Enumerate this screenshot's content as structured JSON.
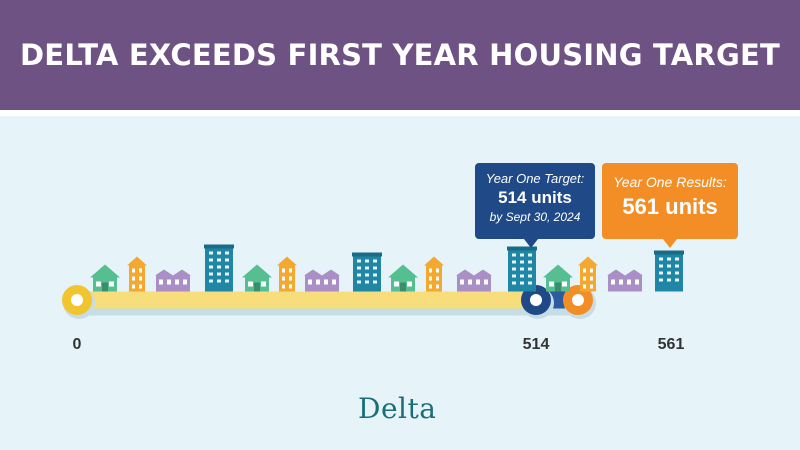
{
  "header": {
    "title": "DELTA EXCEEDS FIRST YEAR HOUSING TARGET"
  },
  "callouts": {
    "target": {
      "label": "Year One Target:",
      "value": "514 units",
      "note": "by Sept 30, 2024"
    },
    "results": {
      "label": "Year One Results:",
      "value": "561 units"
    }
  },
  "logo": {
    "text": "Delta"
  },
  "colors": {
    "header": "#6d5283",
    "background": "#e6f4fa",
    "progress_bar": "#f7dd7b",
    "excess_bar": "#2e5aa0",
    "target_callout": "#1f4a87",
    "result_callout": "#f28e25",
    "start_marker": "#f2c530"
  },
  "chart_data": {
    "type": "bar",
    "orientation": "horizontal",
    "axis_min": 0,
    "series": [
      {
        "label": "Year One Target",
        "value": 514
      },
      {
        "label": "Year One Results",
        "value": 561
      }
    ],
    "tick_labels": [
      "0",
      "514",
      "561"
    ],
    "ticks": [
      0,
      514,
      561
    ]
  }
}
